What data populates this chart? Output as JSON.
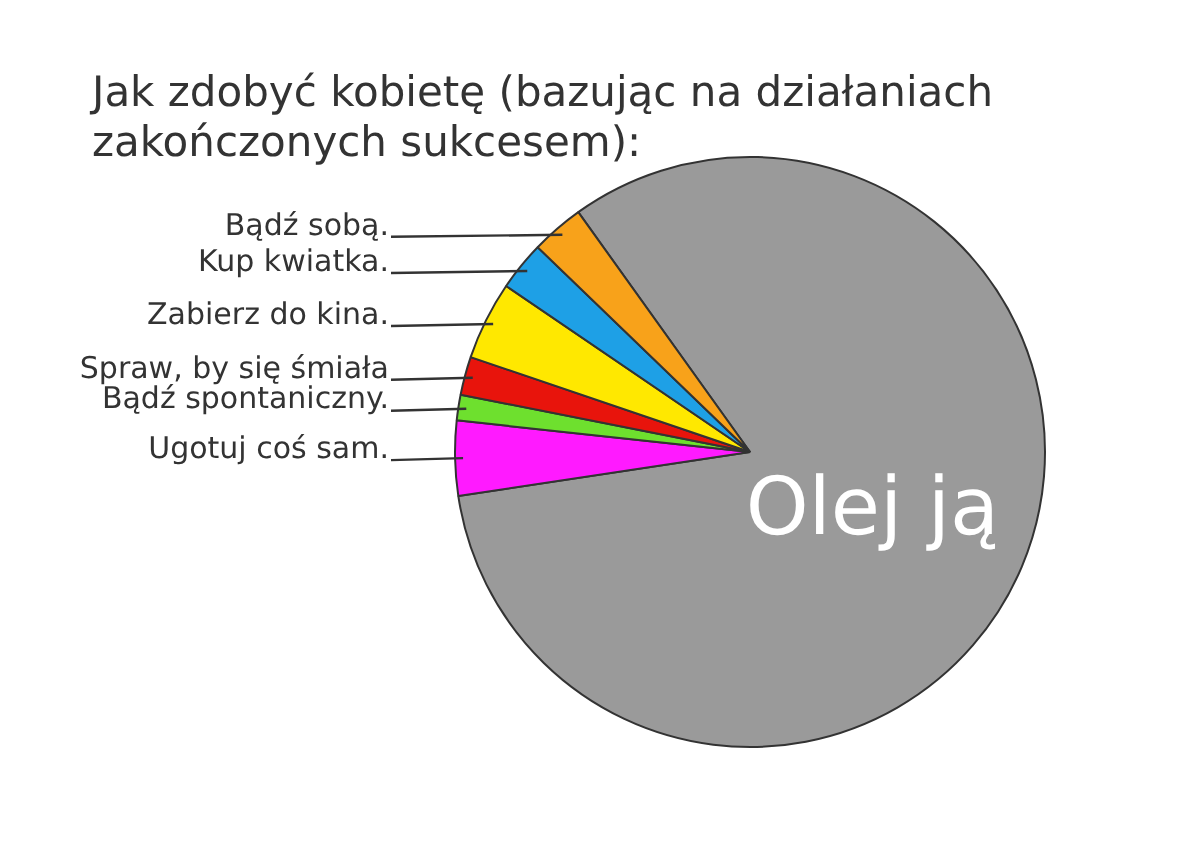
{
  "chart_data": {
    "type": "pie",
    "title": "Jak zdobyć kobietę (bazując na działaniach zakończonych sukcesem):",
    "categories": [
      "Olej ją",
      "Ugotuj coś sam.",
      "Bądź spontaniczny.",
      "Spraw, by się śmiała",
      "Zabierz do kina.",
      "Kup kwiatka.",
      "Bądź sobą."
    ],
    "values": [
      82.5,
      4.1,
      1.4,
      2.1,
      4.3,
      2.7,
      2.9
    ],
    "colors": [
      "#9a9a9a",
      "#ff1aff",
      "#6ee02e",
      "#e8140c",
      "#ffe800",
      "#1ea0e6",
      "#f8a21a"
    ],
    "legend": false
  }
}
